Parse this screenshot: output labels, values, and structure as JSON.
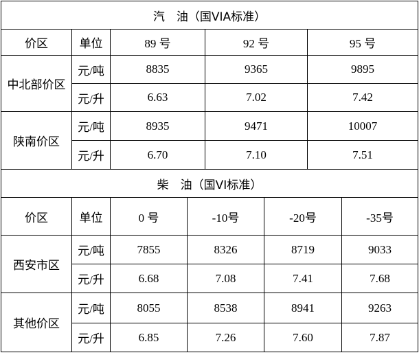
{
  "gasoline": {
    "title": "汽　油（国VIA标准）",
    "header": [
      "价区",
      "单位",
      "89 号",
      "92 号",
      "95 号"
    ],
    "regions": [
      {
        "name": "中北部价区",
        "rows": [
          {
            "unit": "元/吨",
            "values": [
              "8835",
              "9365",
              "9895"
            ]
          },
          {
            "unit": "元/升",
            "values": [
              "6.63",
              "7.02",
              "7.42"
            ]
          }
        ]
      },
      {
        "name": "陕南价区",
        "rows": [
          {
            "unit": "元/吨",
            "values": [
              "8935",
              "9471",
              "10007"
            ]
          },
          {
            "unit": "元/升",
            "values": [
              "6.70",
              "7.10",
              "7.51"
            ]
          }
        ]
      }
    ]
  },
  "diesel": {
    "title": "柴　油（国VI标准）",
    "header": [
      "价区",
      "单位",
      "0 号",
      "-10号",
      "-20号",
      "-35号"
    ],
    "regions": [
      {
        "name": "西安市区",
        "rows": [
          {
            "unit": "元/吨",
            "values": [
              "7855",
              "8326",
              "8719",
              "9033"
            ]
          },
          {
            "unit": "元/升",
            "values": [
              "6.68",
              "7.08",
              "7.41",
              "7.68"
            ]
          }
        ]
      },
      {
        "name": "其他价区",
        "rows": [
          {
            "unit": "元/吨",
            "values": [
              "8055",
              "8538",
              "8941",
              "9263"
            ]
          },
          {
            "unit": "元/升",
            "values": [
              "6.85",
              "7.26",
              "7.60",
              "7.87"
            ]
          }
        ]
      }
    ]
  }
}
